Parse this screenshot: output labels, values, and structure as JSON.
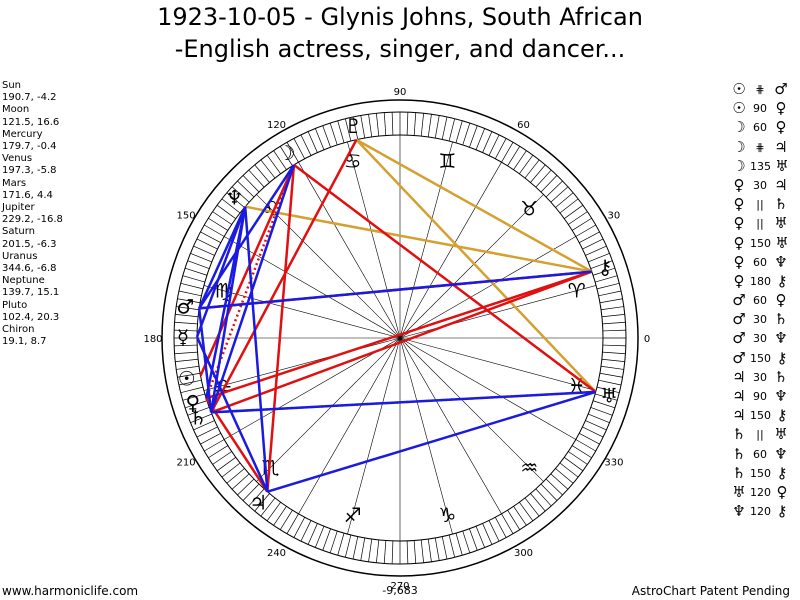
{
  "title_line1": "1923-10-05 - Glynis Johns, South African",
  "title_line2": "-English actress, singer, and dancer...",
  "planets": [
    {
      "name": "Sun",
      "coords": "190.7, -4.2",
      "lon": 190.7,
      "glyph": "☉",
      "color": "#000000"
    },
    {
      "name": "Moon",
      "coords": "121.5, 16.6",
      "lon": 121.5,
      "glyph": "☽",
      "color": "#000000"
    },
    {
      "name": "Mercury",
      "coords": "179.7, -0.4",
      "lon": 179.7,
      "glyph": "☿",
      "color": "#000000"
    },
    {
      "name": "Venus",
      "coords": "197.3, -5.8",
      "lon": 197.3,
      "glyph": "♀",
      "color": "#000000"
    },
    {
      "name": "Mars",
      "coords": "171.6, 4.4",
      "lon": 171.6,
      "glyph": "♂",
      "color": "#000000"
    },
    {
      "name": "Jupiter",
      "coords": "229.2, -16.8",
      "lon": 229.2,
      "glyph": "♃",
      "color": "#000000"
    },
    {
      "name": "Saturn",
      "coords": "201.5, -6.3",
      "lon": 201.5,
      "glyph": "♄",
      "color": "#000000"
    },
    {
      "name": "Uranus",
      "coords": "344.6, -6.8",
      "lon": 344.6,
      "glyph": "♅",
      "color": "#000000"
    },
    {
      "name": "Neptune",
      "coords": "139.7, 15.1",
      "lon": 139.7,
      "glyph": "♆",
      "color": "#000000"
    },
    {
      "name": "Pluto",
      "coords": "102.4, 20.3",
      "lon": 102.4,
      "glyph": "♇",
      "color": "#000000"
    },
    {
      "name": "Chiron",
      "coords": "19.1, 8.7",
      "lon": 19.1,
      "glyph": "⚷",
      "color": "#000000"
    }
  ],
  "aspects": [
    {
      "p1": "☉",
      "a": "⋕",
      "p2": "♂"
    },
    {
      "p1": "☉",
      "a": "90",
      "p2": "♀"
    },
    {
      "p1": "☽",
      "a": "60",
      "p2": "♀"
    },
    {
      "p1": "☽",
      "a": "⋕",
      "p2": "♃"
    },
    {
      "p1": "☽",
      "a": "135",
      "p2": "♅"
    },
    {
      "p1": "♀",
      "a": "30",
      "p2": "♃"
    },
    {
      "p1": "♀",
      "a": "||",
      "p2": "♄"
    },
    {
      "p1": "♀",
      "a": "||",
      "p2": "♅"
    },
    {
      "p1": "♀",
      "a": "150",
      "p2": "♅"
    },
    {
      "p1": "♀",
      "a": "60",
      "p2": "♆"
    },
    {
      "p1": "♀",
      "a": "180",
      "p2": "⚷"
    },
    {
      "p1": "♂",
      "a": "60",
      "p2": "♀"
    },
    {
      "p1": "♂",
      "a": "30",
      "p2": "♄"
    },
    {
      "p1": "♂",
      "a": "30",
      "p2": "♆"
    },
    {
      "p1": "♂",
      "a": "150",
      "p2": "⚷"
    },
    {
      "p1": "♃",
      "a": "30",
      "p2": "♄"
    },
    {
      "p1": "♃",
      "a": "90",
      "p2": "♆"
    },
    {
      "p1": "♃",
      "a": "150",
      "p2": "⚷"
    },
    {
      "p1": "♄",
      "a": "||",
      "p2": "♅"
    },
    {
      "p1": "♄",
      "a": "60",
      "p2": "♆"
    },
    {
      "p1": "♄",
      "a": "150",
      "p2": "⚷"
    },
    {
      "p1": "♅",
      "a": "120",
      "p2": "♀"
    },
    {
      "p1": "♆",
      "a": "120",
      "p2": "⚷"
    }
  ],
  "zodiac_signs": [
    "♈",
    "♉",
    "♊",
    "♋",
    "♌",
    "♍",
    "♎",
    "♏",
    "♐",
    "♑",
    "♒",
    "♓"
  ],
  "degree_labels": [
    {
      "deg": 0,
      "label": "0"
    },
    {
      "deg": 30,
      "label": "30"
    },
    {
      "deg": 60,
      "label": "60"
    },
    {
      "deg": 90,
      "label": "90"
    },
    {
      "deg": 120,
      "label": "120"
    },
    {
      "deg": 150,
      "label": "150"
    },
    {
      "deg": 180,
      "label": "180"
    },
    {
      "deg": 210,
      "label": "210"
    },
    {
      "deg": 240,
      "label": "240"
    },
    {
      "deg": 270,
      "label": "270"
    },
    {
      "deg": 300,
      "label": "300"
    },
    {
      "deg": 330,
      "label": "330"
    }
  ],
  "aspect_lines": [
    {
      "a": "Pluto",
      "b": "Chiron",
      "color": "#d4a030",
      "dash": false
    },
    {
      "a": "Pluto",
      "b": "Uranus",
      "color": "#d4a030",
      "dash": false
    },
    {
      "a": "Neptune",
      "b": "Chiron",
      "color": "#d4a030",
      "dash": false
    },
    {
      "a": "Saturn",
      "b": "Uranus",
      "color": "#d4a030",
      "dash": true
    },
    {
      "a": "Pluto",
      "b": "Saturn",
      "color": "#e01010",
      "dash": false
    },
    {
      "a": "Moon",
      "b": "Sun",
      "color": "#e01010",
      "dash": false
    },
    {
      "a": "Moon",
      "b": "Jupiter",
      "color": "#e01010",
      "dash": false
    },
    {
      "a": "Moon",
      "b": "Uranus",
      "color": "#e01010",
      "dash": false
    },
    {
      "a": "Moon",
      "b": "Venus",
      "color": "#e01010",
      "dash": true
    },
    {
      "a": "Mars",
      "b": "Chiron",
      "color": "#e01010",
      "dash": false
    },
    {
      "a": "Venus",
      "b": "Chiron",
      "color": "#e01010",
      "dash": false
    },
    {
      "a": "Saturn",
      "b": "Chiron",
      "color": "#e01010",
      "dash": false
    },
    {
      "a": "Jupiter",
      "b": "Venus",
      "color": "#e01010",
      "dash": false
    },
    {
      "a": "Moon",
      "b": "Mars",
      "color": "#1a1ae0",
      "dash": false
    },
    {
      "a": "Moon",
      "b": "Saturn",
      "color": "#1a1ae0",
      "dash": false
    },
    {
      "a": "Neptune",
      "b": "Mercury",
      "color": "#1a1ae0",
      "dash": false
    },
    {
      "a": "Neptune",
      "b": "Saturn",
      "color": "#1a1ae0",
      "dash": false
    },
    {
      "a": "Neptune",
      "b": "Venus",
      "color": "#1a1ae0",
      "dash": false
    },
    {
      "a": "Neptune",
      "b": "Mars",
      "color": "#1a1ae0",
      "dash": false
    },
    {
      "a": "Neptune",
      "b": "Jupiter",
      "color": "#1a1ae0",
      "dash": false
    },
    {
      "a": "Mars",
      "b": "Chiron",
      "color": "#1a1ae0",
      "dash": false
    },
    {
      "a": "Mercury",
      "b": "Jupiter",
      "color": "#1a1ae0",
      "dash": false
    },
    {
      "a": "Mars",
      "b": "Saturn",
      "color": "#1a1ae0",
      "dash": false
    },
    {
      "a": "Saturn",
      "b": "Uranus",
      "color": "#1a1ae0",
      "dash": false
    },
    {
      "a": "Jupiter",
      "b": "Uranus",
      "color": "#1a1ae0",
      "dash": false
    }
  ],
  "footer_left": "www.harmoniclife.com",
  "footer_right": "AstroChart Patent Pending",
  "total_score": "-9,683"
}
